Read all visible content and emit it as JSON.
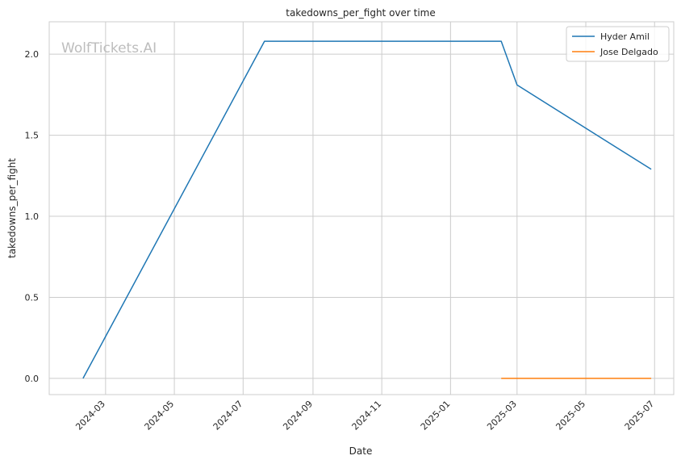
{
  "watermark": "WolfTickets.AI",
  "chart_data": {
    "type": "line",
    "title": "takedowns_per_fight over time",
    "xlabel": "Date",
    "ylabel": "takedowns_per_fight",
    "x_ticks": [
      "2024-03",
      "2024-05",
      "2024-07",
      "2024-09",
      "2024-11",
      "2025-01",
      "2025-03",
      "2025-05",
      "2025-07"
    ],
    "y_ticks": [
      "0.0",
      "0.5",
      "1.0",
      "1.5",
      "2.0"
    ],
    "ylim": [
      -0.1,
      2.2
    ],
    "xlim": [
      "2024-01-11",
      "2025-07-18"
    ],
    "grid": true,
    "legend_position": "top-right",
    "series": [
      {
        "name": "Hyder Amil",
        "color": "#1f77b4",
        "points": [
          {
            "x": "2024-02-10",
            "y": 0.0
          },
          {
            "x": "2024-07-20",
            "y": 2.08
          },
          {
            "x": "2025-02-15",
            "y": 2.08
          },
          {
            "x": "2025-03-01",
            "y": 1.81
          },
          {
            "x": "2025-06-28",
            "y": 1.29
          }
        ]
      },
      {
        "name": "Jose Delgado",
        "color": "#ff7f0e",
        "points": [
          {
            "x": "2025-02-15",
            "y": 0.0
          },
          {
            "x": "2025-06-28",
            "y": 0.0
          }
        ]
      }
    ]
  }
}
